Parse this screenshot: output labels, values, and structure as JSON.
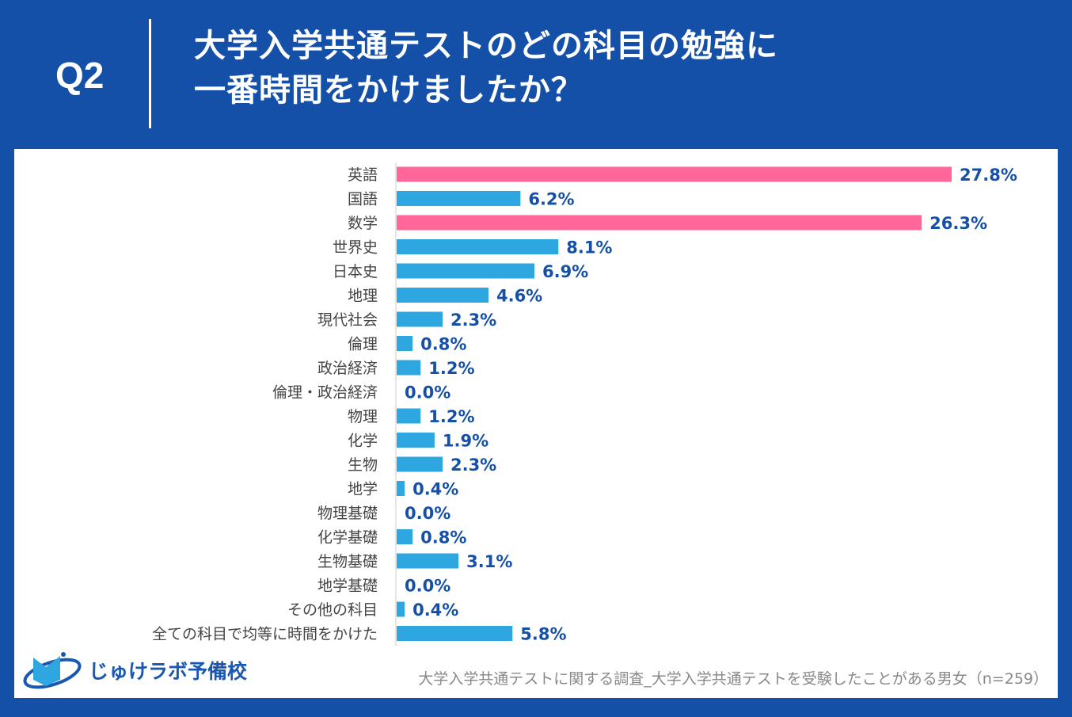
{
  "header": {
    "question": "Q2",
    "title_line1": "大学入学共通テストのどの科目の勉強に",
    "title_line2": "一番時間をかけましたか？"
  },
  "footer": {
    "source": "大学入学共通テストに関する調査_大学入学共通テストを受験したことがある男女（n=259）",
    "logo_text": "じゅけラボ予備校"
  },
  "colors": {
    "highlight": "#ff6699",
    "default": "#2ea7e0",
    "label": "#1550a8",
    "background": "#1550a8"
  },
  "chart_data": {
    "type": "bar",
    "orientation": "horizontal",
    "unit": "%",
    "categories": [
      "英語",
      "国語",
      "数学",
      "世界史",
      "日本史",
      "地理",
      "現代社会",
      "倫理",
      "政治経済",
      "倫理・政治経済",
      "物理",
      "化学",
      "生物",
      "地学",
      "物理基礎",
      "化学基礎",
      "生物基礎",
      "地学基礎",
      "その他の科目",
      "全ての科目で均等に時間をかけた"
    ],
    "values": [
      27.8,
      6.2,
      26.3,
      8.1,
      6.9,
      4.6,
      2.3,
      0.8,
      1.2,
      0.0,
      1.2,
      1.9,
      2.3,
      0.4,
      0.0,
      0.8,
      3.1,
      0.0,
      0.4,
      5.8
    ],
    "labels": [
      "27.8%",
      "6.2%",
      "26.3%",
      "8.1%",
      "6.9%",
      "4.6%",
      "2.3%",
      "0.8%",
      "1.2%",
      "0.0%",
      "1.2%",
      "1.9%",
      "2.3%",
      "0.4%",
      "0.0%",
      "0.8%",
      "3.1%",
      "0.0%",
      "0.4%",
      "5.8%"
    ],
    "highlighted": [
      "英語",
      "数学"
    ],
    "xlim": [
      0,
      30
    ],
    "grid": false,
    "legend": "none"
  }
}
